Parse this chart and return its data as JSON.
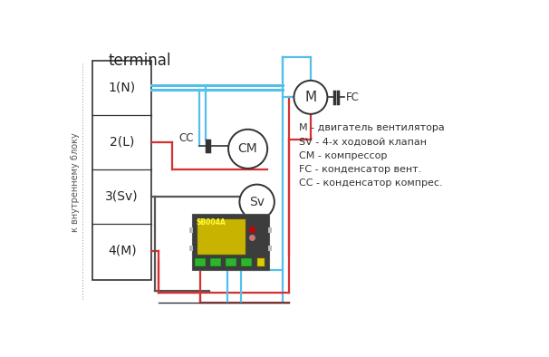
{
  "title": "terminal",
  "ylabel_rotated": "к внутреннему блоку",
  "terminal_labels": [
    "1(N)",
    "2(L)",
    "3(Sv)",
    "4(M)"
  ],
  "legend_lines": [
    "M - двигатель вентилятора",
    "SV - 4-х ходовой клапан",
    "CM - компрессор",
    "FC - конденсатор вент.",
    "CC - конденсатор компрес."
  ],
  "bg_color": "#ffffff",
  "box_color": "#333333",
  "blue_color": "#55bfea",
  "red_color": "#d63030",
  "gray_color": "#999999",
  "dark_color": "#333333",
  "module_color": "#3d3d3d",
  "module_text": "SB004A",
  "board_color": "#c8b400",
  "green_color": "#2db52d"
}
